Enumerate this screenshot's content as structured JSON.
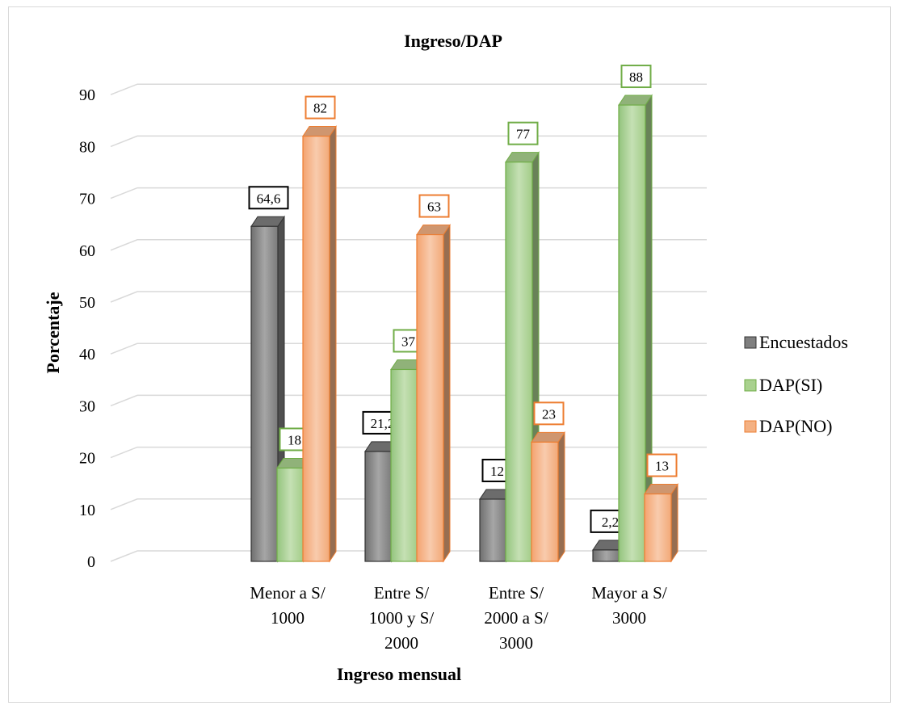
{
  "chart_data": {
    "type": "bar",
    "title": "Ingreso/DAP",
    "xlabel": "Ingreso mensual",
    "ylabel": "Porcentaje",
    "ylim": [
      0,
      90
    ],
    "yticks": [
      "0",
      "10",
      "20",
      "30",
      "40",
      "50",
      "60",
      "70",
      "80",
      "90"
    ],
    "ytick_values": [
      0,
      10,
      20,
      30,
      40,
      50,
      60,
      70,
      80,
      90
    ],
    "grid": true,
    "legend_position": "right",
    "style": "3d-clustered-column",
    "categories": [
      [
        "Menor a S/",
        "1000"
      ],
      [
        "Entre S/",
        "1000 y S/",
        "2000"
      ],
      [
        "Entre S/",
        "2000 a S/",
        "3000"
      ],
      [
        "Mayor a S/",
        "3000"
      ]
    ],
    "series": [
      {
        "name": "Encuestados",
        "values": [
          64.6,
          21.2,
          12,
          2.2
        ],
        "labels": [
          "64,6",
          "21,2",
          "12",
          "2,2"
        ],
        "color": "#7f7f7f",
        "label_border": "#000000"
      },
      {
        "name": "DAP(SI)",
        "values": [
          18,
          37,
          77,
          88
        ],
        "labels": [
          "18",
          "37",
          "77",
          "88"
        ],
        "color": "#a9d18e",
        "label_border": "#70ad47"
      },
      {
        "name": "DAP(NO)",
        "values": [
          82,
          63,
          23,
          13
        ],
        "labels": [
          "82",
          "63",
          "23",
          "13"
        ],
        "color": "#f4b183",
        "label_border": "#ed7d31"
      }
    ]
  }
}
